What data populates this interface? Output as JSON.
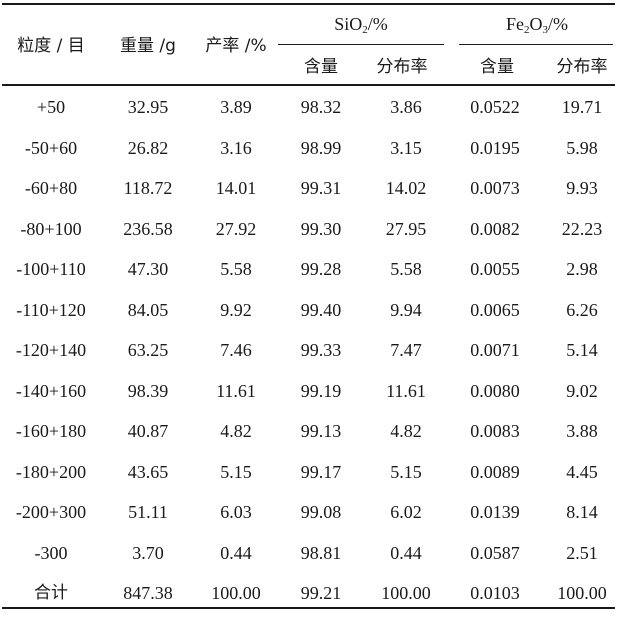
{
  "headers": {
    "size": "粒度 / 目",
    "weight": "重量 /g",
    "yield": "产率 /%",
    "sio2_group": {
      "prefix": "SiO",
      "sub": "2",
      "suffix": "/%"
    },
    "fe2o3_group": {
      "p1": "Fe",
      "s1": "2",
      "p2": "O",
      "s2": "3",
      "suffix": "/%"
    },
    "content": "含量",
    "distribution": "分布率"
  },
  "rows": [
    {
      "size": "+50",
      "weight": "32.95",
      "yield": "3.89",
      "sio2_content": "98.32",
      "sio2_dist": "3.86",
      "fe2o3_content": "0.0522",
      "fe2o3_dist": "19.71"
    },
    {
      "size": "-50+60",
      "weight": "26.82",
      "yield": "3.16",
      "sio2_content": "98.99",
      "sio2_dist": "3.15",
      "fe2o3_content": "0.0195",
      "fe2o3_dist": "5.98"
    },
    {
      "size": "-60+80",
      "weight": "118.72",
      "yield": "14.01",
      "sio2_content": "99.31",
      "sio2_dist": "14.02",
      "fe2o3_content": "0.0073",
      "fe2o3_dist": "9.93"
    },
    {
      "size": "-80+100",
      "weight": "236.58",
      "yield": "27.92",
      "sio2_content": "99.30",
      "sio2_dist": "27.95",
      "fe2o3_content": "0.0082",
      "fe2o3_dist": "22.23"
    },
    {
      "size": "-100+110",
      "weight": "47.30",
      "yield": "5.58",
      "sio2_content": "99.28",
      "sio2_dist": "5.58",
      "fe2o3_content": "0.0055",
      "fe2o3_dist": "2.98"
    },
    {
      "size": "-110+120",
      "weight": "84.05",
      "yield": "9.92",
      "sio2_content": "99.40",
      "sio2_dist": "9.94",
      "fe2o3_content": "0.0065",
      "fe2o3_dist": "6.26"
    },
    {
      "size": "-120+140",
      "weight": "63.25",
      "yield": "7.46",
      "sio2_content": "99.33",
      "sio2_dist": "7.47",
      "fe2o3_content": "0.0071",
      "fe2o3_dist": "5.14"
    },
    {
      "size": "-140+160",
      "weight": "98.39",
      "yield": "11.61",
      "sio2_content": "99.19",
      "sio2_dist": "11.61",
      "fe2o3_content": "0.0080",
      "fe2o3_dist": "9.02"
    },
    {
      "size": "-160+180",
      "weight": "40.87",
      "yield": "4.82",
      "sio2_content": "99.13",
      "sio2_dist": "4.82",
      "fe2o3_content": "0.0083",
      "fe2o3_dist": "3.88"
    },
    {
      "size": "-180+200",
      "weight": "43.65",
      "yield": "5.15",
      "sio2_content": "99.17",
      "sio2_dist": "5.15",
      "fe2o3_content": "0.0089",
      "fe2o3_dist": "4.45"
    },
    {
      "size": "-200+300",
      "weight": "51.11",
      "yield": "6.03",
      "sio2_content": "99.08",
      "sio2_dist": "6.02",
      "fe2o3_content": "0.0139",
      "fe2o3_dist": "8.14"
    },
    {
      "size": "-300",
      "weight": "3.70",
      "yield": "0.44",
      "sio2_content": "98.81",
      "sio2_dist": "0.44",
      "fe2o3_content": "0.0587",
      "fe2o3_dist": "2.51"
    },
    {
      "size": "合计",
      "weight": "847.38",
      "yield": "100.00",
      "sio2_content": "99.21",
      "sio2_dist": "100.00",
      "fe2o3_content": "0.0103",
      "fe2o3_dist": "100.00"
    }
  ]
}
